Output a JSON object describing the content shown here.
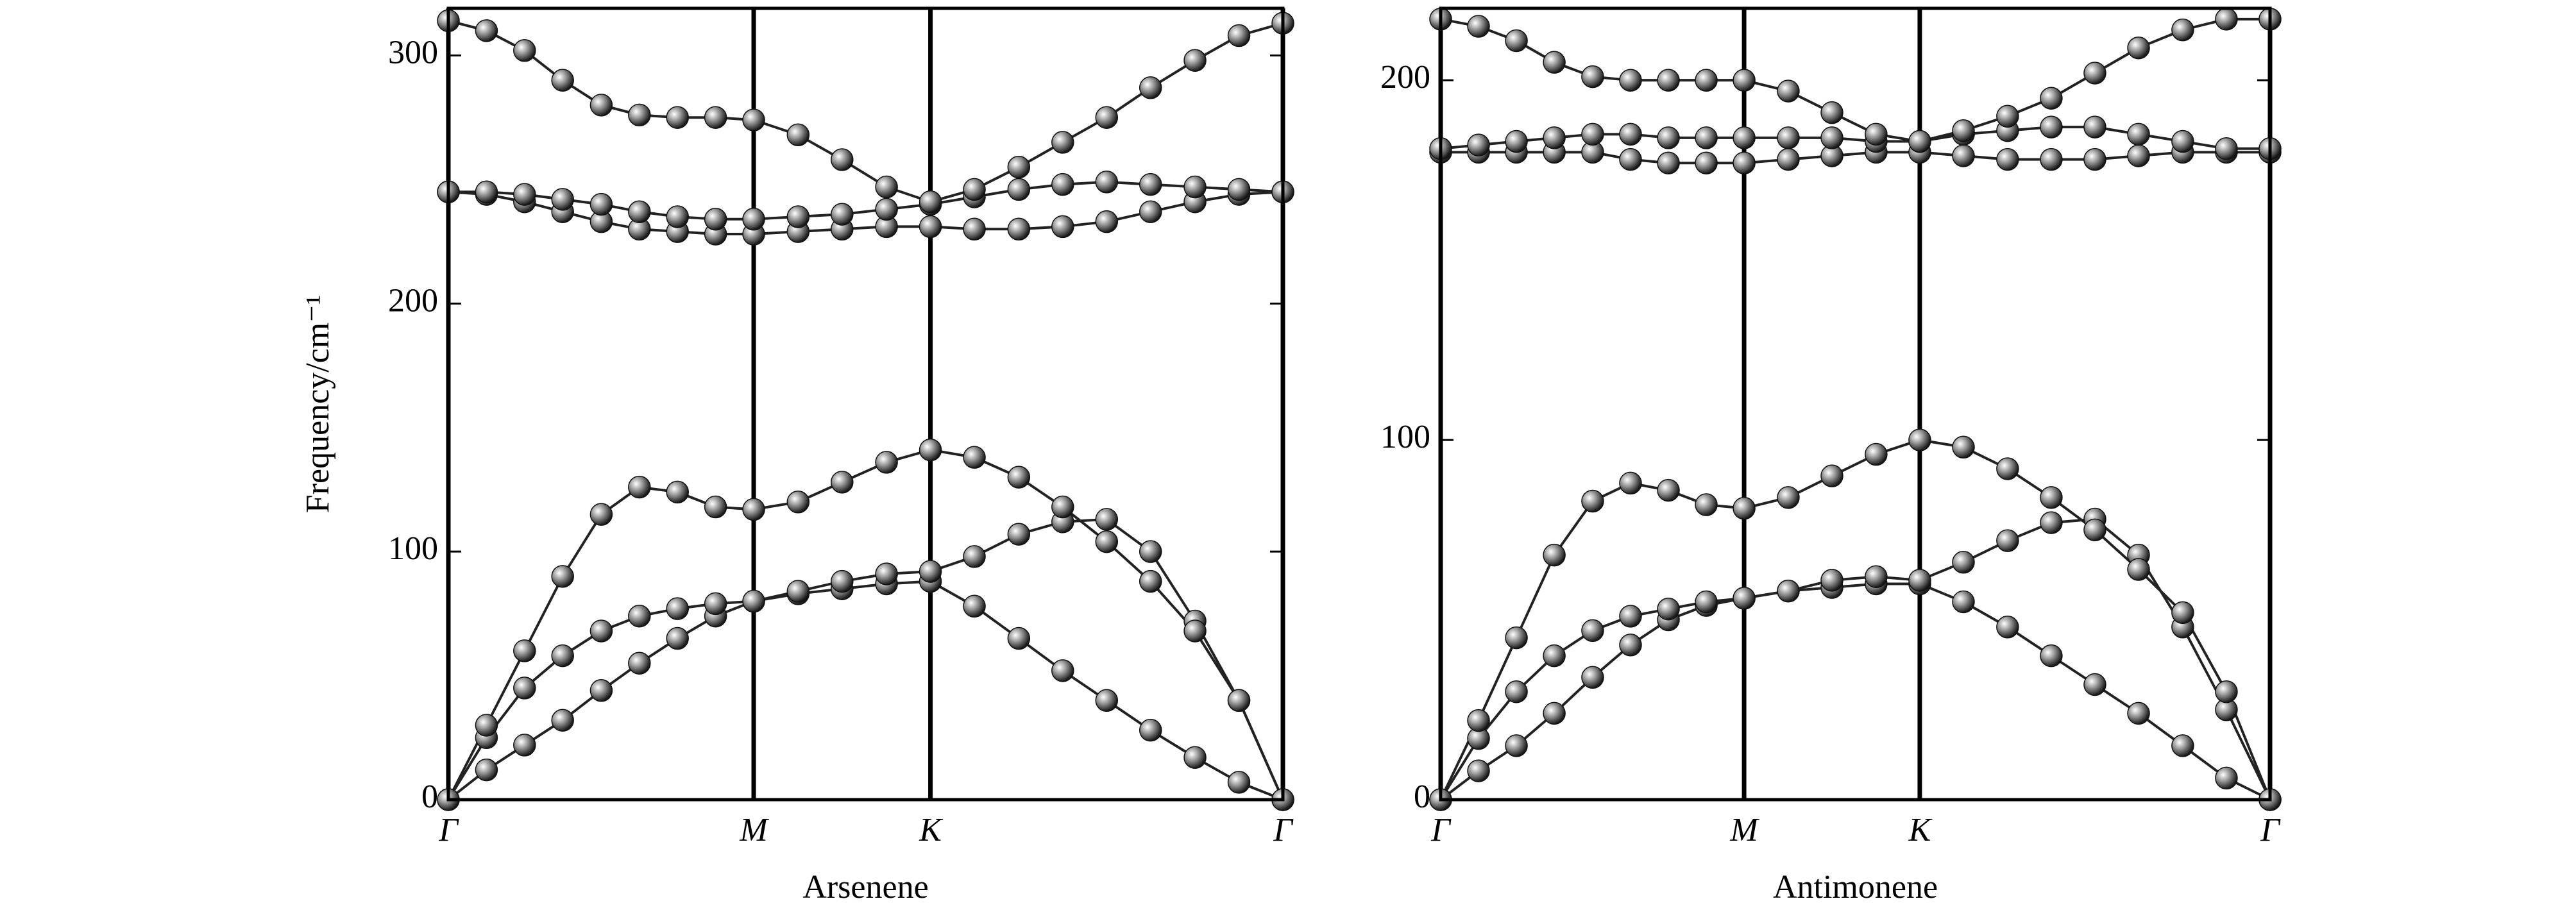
{
  "chart_data": [
    {
      "type": "line",
      "xlabel": "Arsenene",
      "ylabel": "Frequency/cm⁻¹",
      "color": "#222222",
      "grid": "x",
      "x": [
        0,
        0.072,
        0.144,
        0.216,
        0.289,
        0.361,
        0.433,
        0.505,
        0.577,
        0.661,
        0.744,
        0.828,
        0.911,
        0.994,
        1.078,
        1.161,
        1.244,
        1.327,
        1.411,
        1.494,
        1.577
      ],
      "xlim": [
        0,
        1.577
      ],
      "xticks": [
        {
          "value": 0,
          "label": "Γ"
        },
        {
          "value": 0.577,
          "label": "M"
        },
        {
          "value": 0.911,
          "label": "K"
        },
        {
          "value": 1.577,
          "label": "Γ"
        }
      ],
      "ylim": [
        0,
        319
      ],
      "yticks": [
        0,
        100,
        200,
        300
      ],
      "series": [
        {
          "values": [
            0,
            12,
            22,
            32,
            44,
            55,
            65,
            74,
            80,
            83,
            85,
            87,
            88,
            78,
            65,
            52,
            40,
            28,
            17,
            7,
            0
          ]
        },
        {
          "values": [
            0,
            25,
            45,
            58,
            68,
            74,
            77,
            79,
            80,
            84,
            88,
            91,
            92,
            98,
            107,
            112,
            113,
            100,
            72,
            40,
            0
          ]
        },
        {
          "values": [
            0,
            30,
            60,
            90,
            115,
            126,
            124,
            118,
            117,
            120,
            128,
            136,
            141,
            138,
            130,
            118,
            104,
            88,
            68,
            40,
            0
          ]
        },
        {
          "values": [
            245,
            244,
            241,
            237,
            233,
            230,
            229,
            228,
            228,
            229,
            230,
            231,
            231,
            230,
            230,
            231,
            233,
            237,
            241,
            244,
            245
          ]
        },
        {
          "values": [
            245,
            245,
            244,
            242,
            240,
            237,
            235,
            234,
            234,
            235,
            236,
            238,
            240,
            243,
            246,
            248,
            249,
            248,
            247,
            246,
            245
          ]
        },
        {
          "values": [
            314,
            310,
            302,
            290,
            280,
            276,
            275,
            275,
            274,
            268,
            258,
            247,
            241,
            246,
            255,
            265,
            275,
            287,
            298,
            308,
            313
          ]
        }
      ]
    },
    {
      "type": "line",
      "xlabel": "Antimonene",
      "color": "#222222",
      "grid": "x",
      "x": [
        0,
        0.072,
        0.144,
        0.216,
        0.289,
        0.361,
        0.433,
        0.505,
        0.577,
        0.661,
        0.744,
        0.828,
        0.911,
        0.994,
        1.078,
        1.161,
        1.244,
        1.327,
        1.411,
        1.494,
        1.577
      ],
      "xlim": [
        0,
        1.577
      ],
      "xticks": [
        {
          "value": 0,
          "label": "Γ"
        },
        {
          "value": 0.577,
          "label": "M"
        },
        {
          "value": 0.911,
          "label": "K"
        },
        {
          "value": 1.577,
          "label": "Γ"
        }
      ],
      "ylim": [
        0,
        220
      ],
      "yticks": [
        0,
        100,
        200
      ],
      "series": [
        {
          "values": [
            0,
            8,
            15,
            24,
            34,
            43,
            50,
            54,
            56,
            58,
            59,
            60,
            60,
            55,
            48,
            40,
            32,
            24,
            15,
            6,
            0
          ]
        },
        {
          "values": [
            0,
            17,
            30,
            40,
            47,
            51,
            53,
            55,
            56,
            58,
            61,
            62,
            61,
            66,
            72,
            77,
            78,
            68,
            48,
            25,
            0
          ]
        },
        {
          "values": [
            0,
            22,
            45,
            68,
            83,
            88,
            86,
            82,
            81,
            84,
            90,
            96,
            100,
            98,
            92,
            84,
            75,
            64,
            52,
            30,
            0
          ]
        },
        {
          "values": [
            180,
            180,
            180,
            180,
            180,
            178,
            177,
            177,
            177,
            178,
            179,
            180,
            180,
            179,
            178,
            178,
            178,
            179,
            180,
            180,
            180
          ]
        },
        {
          "values": [
            181,
            182,
            183,
            184,
            185,
            185,
            184,
            184,
            184,
            184,
            184,
            183,
            183,
            185,
            186,
            187,
            187,
            185,
            183,
            181,
            181
          ]
        },
        {
          "values": [
            217,
            215,
            211,
            205,
            201,
            200,
            200,
            200,
            200,
            197,
            191,
            185,
            183,
            186,
            190,
            195,
            202,
            209,
            214,
            217,
            217
          ]
        }
      ]
    }
  ]
}
